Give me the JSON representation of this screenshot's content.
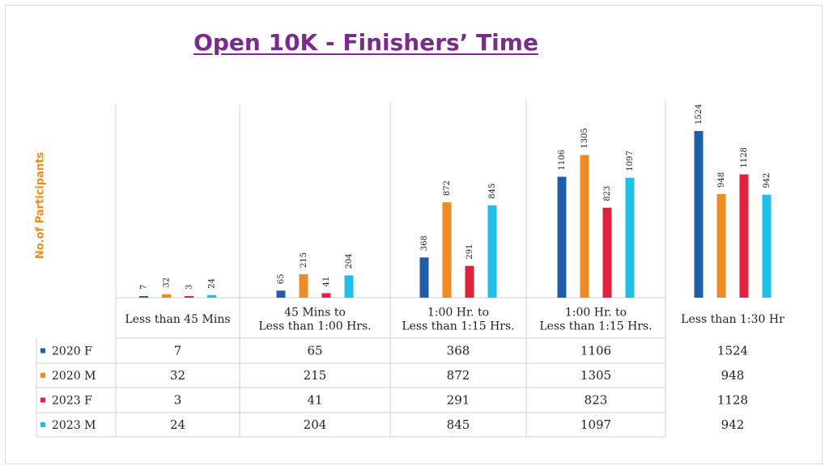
{
  "chart_data": {
    "type": "bar",
    "title": "Open 10K - Finishers’ Time",
    "ylabel": "No.of Participants",
    "categories": [
      [
        "Less than 45 Mins"
      ],
      [
        "45 Mins to",
        "Less than 1:00 Hrs."
      ],
      [
        "1:00 Hr. to",
        "Less than 1:15 Hrs."
      ],
      [
        "1:00 Hr. to",
        "Less than 1:15 Hrs."
      ],
      [
        "Less than 1:30 Hr"
      ]
    ],
    "series": [
      {
        "name": "2020 F",
        "color": "#1f5fa8",
        "values": [
          7,
          65,
          368,
          1106,
          1524
        ]
      },
      {
        "name": "2020 M",
        "color": "#f08a24",
        "values": [
          32,
          215,
          872,
          1305,
          948
        ]
      },
      {
        "name": "2023 F",
        "color": "#e0223f",
        "values": [
          3,
          41,
          291,
          823,
          1128
        ]
      },
      {
        "name": "2023 M",
        "color": "#1ec0ea",
        "values": [
          24,
          204,
          845,
          1097,
          942
        ]
      }
    ],
    "ylim": [
      0,
      1524
    ],
    "grid": false,
    "legend": "table-left",
    "data_table": true
  }
}
